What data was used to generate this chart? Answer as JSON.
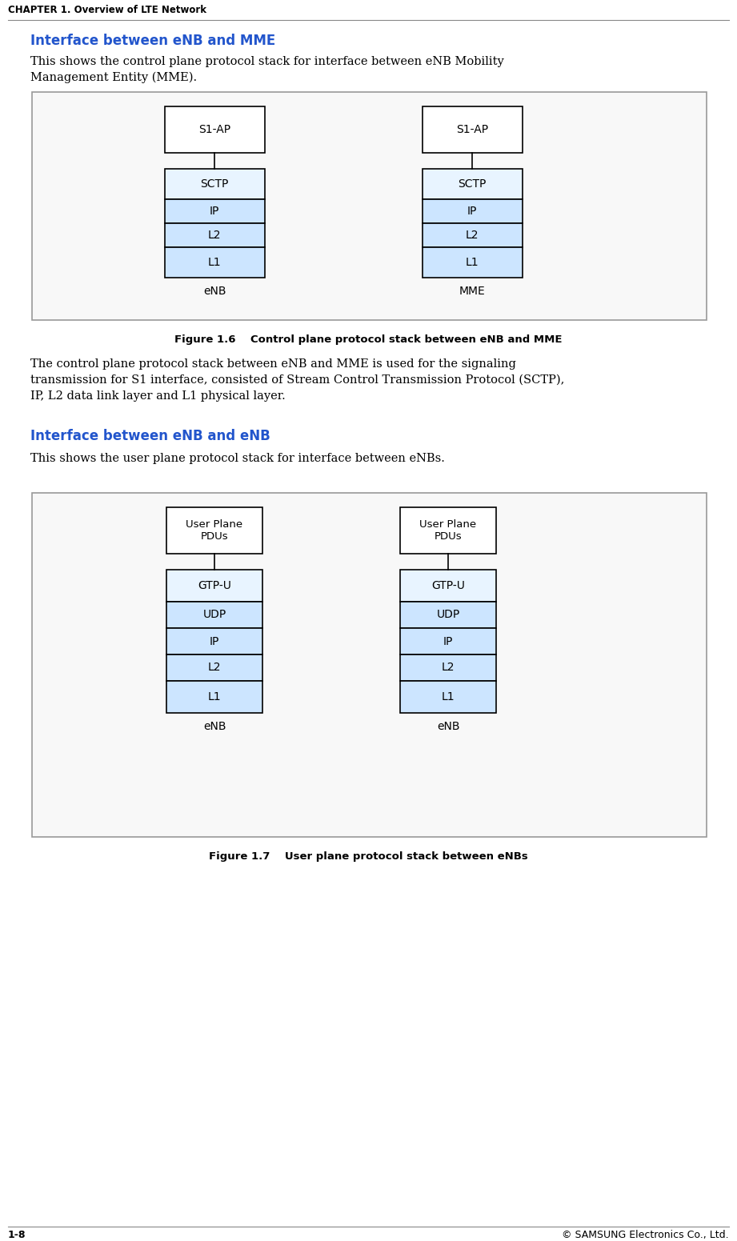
{
  "page_bg": "#ffffff",
  "header_text": "CHAPTER 1. Overview of LTE Network",
  "footer_left": "1-8",
  "footer_right": "© SAMSUNG Electronics Co., Ltd.",
  "section1_heading": "Interface between eNB and MME",
  "section1_body1": "This shows the control plane protocol stack for interface between eNB Mobility",
  "section1_body2": "Management Entity (MME).",
  "fig1_caption": "Figure 1.6    Control plane protocol stack between eNB and MME",
  "fig1_body1": "The control plane protocol stack between eNB and MME is used for the signaling",
  "fig1_body2": "transmission for S1 interface, consisted of Stream Control Transmission Protocol (SCTP),",
  "fig1_body3": "IP, L2 data link layer and L1 physical layer.",
  "section2_heading": "Interface between eNB and eNB",
  "section2_body": "This shows the user plane protocol stack for interface between eNBs.",
  "fig2_caption": "Figure 1.7    User plane protocol stack between eNBs",
  "heading_color": "#2255cc",
  "box_fill_blue": "#cce5ff",
  "box_fill_white": "#eef6ff",
  "box_border": "#000000",
  "diagram_border": "#999999",
  "diagram_bg": "#ffffff",
  "text_color": "#000000",
  "fig1_stack1_label": "eNB",
  "fig1_stack2_label": "MME",
  "fig2_stack1_label": "eNB",
  "fig2_stack2_label": "eNB"
}
